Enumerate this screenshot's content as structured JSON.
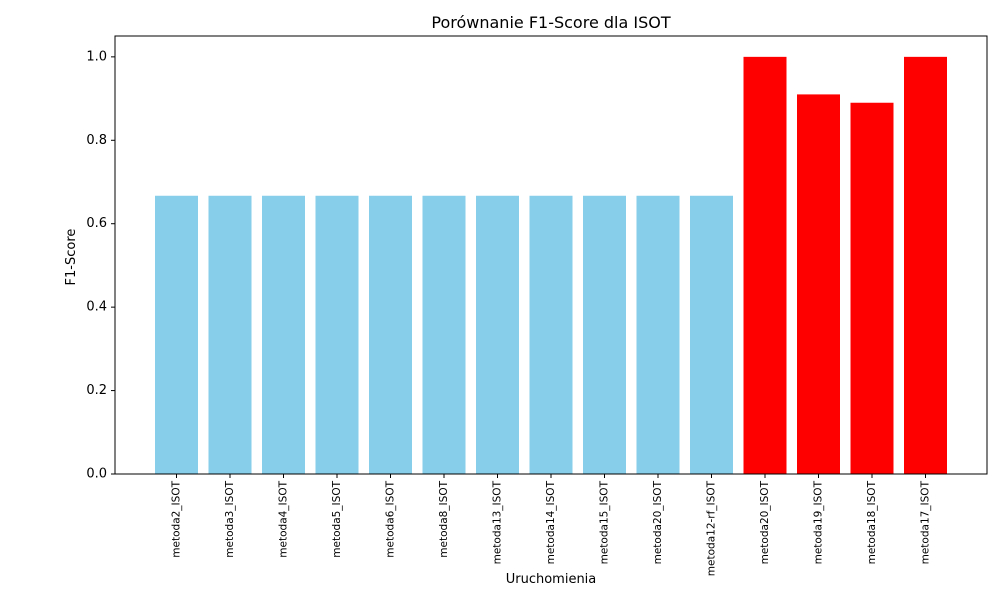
{
  "chart_data": {
    "type": "bar",
    "title": "Porównanie F1-Score dla ISOT",
    "xlabel": "Uruchomienia",
    "ylabel": "F1-Score",
    "ylim": [
      0,
      1.05
    ],
    "yticks": [
      0.0,
      0.2,
      0.4,
      0.6,
      0.8,
      1.0
    ],
    "ytick_labels": [
      "0.0",
      "0.2",
      "0.4",
      "0.6",
      "0.8",
      "1.0"
    ],
    "grid": false,
    "legend": "none",
    "categories": [
      "metoda2_ISOT",
      "metoda3_ISOT",
      "metoda4_ISOT",
      "metoda5_ISOT",
      "metoda6_ISOT",
      "metoda8_ISOT",
      "metoda13_ISOT",
      "metoda14_ISOT",
      "metoda15_ISOT",
      "metoda20_ISOT",
      "metoda12-rf_ISOT",
      "metoda20_ISOT",
      "metoda19_ISOT",
      "metoda18_ISOT",
      "metoda17_ISOT"
    ],
    "values": [
      0.667,
      0.667,
      0.667,
      0.667,
      0.667,
      0.667,
      0.667,
      0.667,
      0.667,
      0.667,
      0.667,
      1.0,
      0.91,
      0.89,
      1.0
    ],
    "bar_colors": [
      "#87CEEB",
      "#87CEEB",
      "#87CEEB",
      "#87CEEB",
      "#87CEEB",
      "#87CEEB",
      "#87CEEB",
      "#87CEEB",
      "#87CEEB",
      "#87CEEB",
      "#87CEEB",
      "#FF0000",
      "#FF0000",
      "#FF0000",
      "#FF0000"
    ]
  }
}
